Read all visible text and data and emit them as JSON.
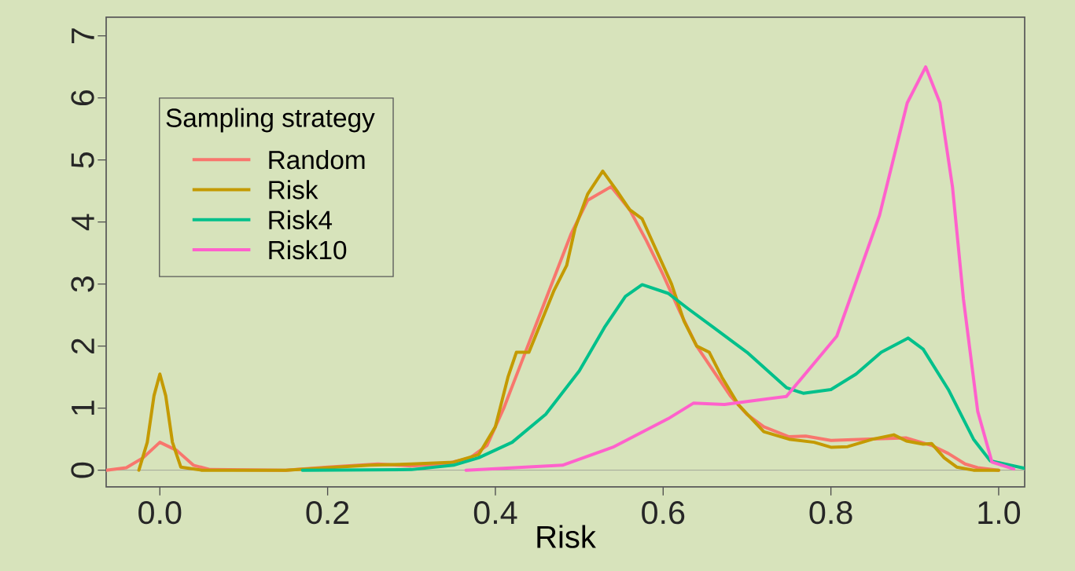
{
  "chart_data": {
    "type": "line",
    "xlabel": "Risk",
    "legend_title": "Sampling strategy",
    "legend": "top left",
    "line_style": "solid",
    "xlim": [
      -0.064,
      1.031
    ],
    "ylim": [
      -0.27,
      7.3
    ],
    "xticks": [
      {
        "value": 0,
        "label": "0.0"
      },
      {
        "value": 0.2,
        "label": "0.2"
      },
      {
        "value": 0.4,
        "label": "0.4"
      },
      {
        "value": 0.6,
        "label": "0.6"
      },
      {
        "value": 0.8,
        "label": "0.8"
      },
      {
        "value": 1,
        "label": "1.0"
      }
    ],
    "yticks": [
      0,
      1,
      2,
      3,
      4,
      5,
      6,
      7
    ],
    "ref_lines": [
      {
        "axis": "y",
        "value": 0,
        "color": "#a8ad9c"
      }
    ],
    "series": [
      {
        "name": "Random",
        "color": "#f8766d",
        "x": [
          -0.064,
          -0.04,
          -0.02,
          0,
          0.02,
          0.04,
          0.06,
          0.15,
          0.2,
          0.26,
          0.3,
          0.34,
          0.37,
          0.39,
          0.41,
          0.43,
          0.45,
          0.47,
          0.49,
          0.51,
          0.538,
          0.56,
          0.58,
          0.6,
          0.62,
          0.64,
          0.66,
          0.68,
          0.7,
          0.72,
          0.75,
          0.77,
          0.8,
          0.84,
          0.89,
          0.92,
          0.94,
          0.96,
          0.975,
          1.0
        ],
        "values": [
          0,
          0.04,
          0.2,
          0.45,
          0.32,
          0.08,
          0.01,
          0,
          0.05,
          0.1,
          0.07,
          0.1,
          0.2,
          0.4,
          1.0,
          1.7,
          2.4,
          3.1,
          3.8,
          4.35,
          4.57,
          4.2,
          3.7,
          3.15,
          2.55,
          2.0,
          1.6,
          1.2,
          0.9,
          0.7,
          0.54,
          0.55,
          0.48,
          0.5,
          0.52,
          0.4,
          0.27,
          0.1,
          0.04,
          0
        ]
      },
      {
        "name": "Risk",
        "color": "#c49a00",
        "x": [
          -0.025,
          -0.015,
          -0.007,
          0,
          0.007,
          0.015,
          0.025,
          0.05,
          0.15,
          0.25,
          0.3,
          0.35,
          0.38,
          0.4,
          0.415,
          0.425,
          0.44,
          0.455,
          0.47,
          0.485,
          0.495,
          0.51,
          0.528,
          0.545,
          0.56,
          0.575,
          0.59,
          0.61,
          0.625,
          0.64,
          0.655,
          0.67,
          0.69,
          0.72,
          0.75,
          0.78,
          0.8,
          0.82,
          0.85,
          0.875,
          0.89,
          0.91,
          0.92,
          0.935,
          0.95,
          0.97,
          1.0
        ],
        "values": [
          0,
          0.45,
          1.2,
          1.55,
          1.2,
          0.45,
          0.05,
          0,
          0,
          0.08,
          0.1,
          0.13,
          0.25,
          0.7,
          1.5,
          1.9,
          1.9,
          2.4,
          2.9,
          3.3,
          3.9,
          4.45,
          4.82,
          4.5,
          4.2,
          4.05,
          3.6,
          3.0,
          2.4,
          2.0,
          1.9,
          1.5,
          1.05,
          0.62,
          0.5,
          0.45,
          0.37,
          0.38,
          0.5,
          0.57,
          0.47,
          0.42,
          0.43,
          0.2,
          0.05,
          0,
          0
        ]
      },
      {
        "name": "Risk4",
        "color": "#00c08b",
        "x": [
          0.17,
          0.3,
          0.35,
          0.38,
          0.42,
          0.46,
          0.5,
          0.53,
          0.555,
          0.575,
          0.606,
          0.63,
          0.66,
          0.7,
          0.747,
          0.767,
          0.8,
          0.83,
          0.86,
          0.892,
          0.91,
          0.94,
          0.97,
          0.99,
          1.031
        ],
        "values": [
          0,
          0.01,
          0.08,
          0.2,
          0.45,
          0.9,
          1.6,
          2.3,
          2.8,
          2.99,
          2.85,
          2.6,
          2.3,
          1.9,
          1.33,
          1.24,
          1.3,
          1.55,
          1.9,
          2.13,
          1.95,
          1.3,
          0.5,
          0.15,
          0.03
        ]
      },
      {
        "name": "Risk10",
        "color": "#ff61cc",
        "x": [
          0.365,
          0.48,
          0.54,
          0.606,
          0.636,
          0.673,
          0.747,
          0.807,
          0.858,
          0.891,
          0.913,
          0.93,
          0.945,
          0.958,
          0.975,
          0.992,
          1.018
        ],
        "values": [
          0,
          0.08,
          0.37,
          0.83,
          1.08,
          1.06,
          1.19,
          2.16,
          4.11,
          5.92,
          6.5,
          5.92,
          4.56,
          2.76,
          0.95,
          0.13,
          0.02
        ]
      }
    ]
  }
}
